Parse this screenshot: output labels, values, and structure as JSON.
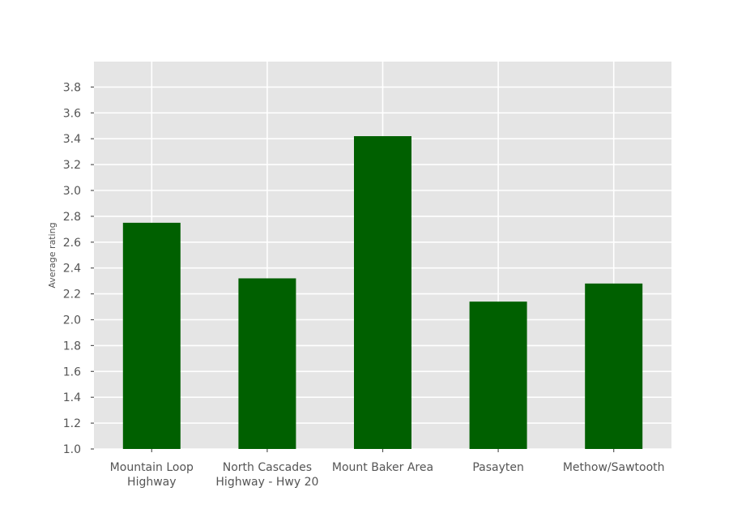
{
  "chart_data": {
    "type": "bar",
    "categories": [
      [
        "Mountain Loop",
        "Highway"
      ],
      [
        "North Cascades",
        "Highway - Hwy 20"
      ],
      [
        "Mount Baker Area"
      ],
      [
        "Pasayten"
      ],
      [
        "Methow/Sawtooth"
      ]
    ],
    "values": [
      2.75,
      2.32,
      3.42,
      2.14,
      2.28
    ],
    "title": "",
    "xlabel": "",
    "ylabel": "Average rating",
    "ylim": [
      1.0,
      4.0
    ],
    "yticks": [
      "1.0",
      "1.2",
      "1.4",
      "1.6",
      "1.8",
      "2.0",
      "2.2",
      "2.4",
      "2.6",
      "2.8",
      "3.0",
      "3.2",
      "3.4",
      "3.6",
      "3.8"
    ],
    "grid": true,
    "colors": {
      "bar": "#006000",
      "plot_background": "#e5e5e5",
      "grid": "#ffffff",
      "text": "#555555"
    }
  }
}
